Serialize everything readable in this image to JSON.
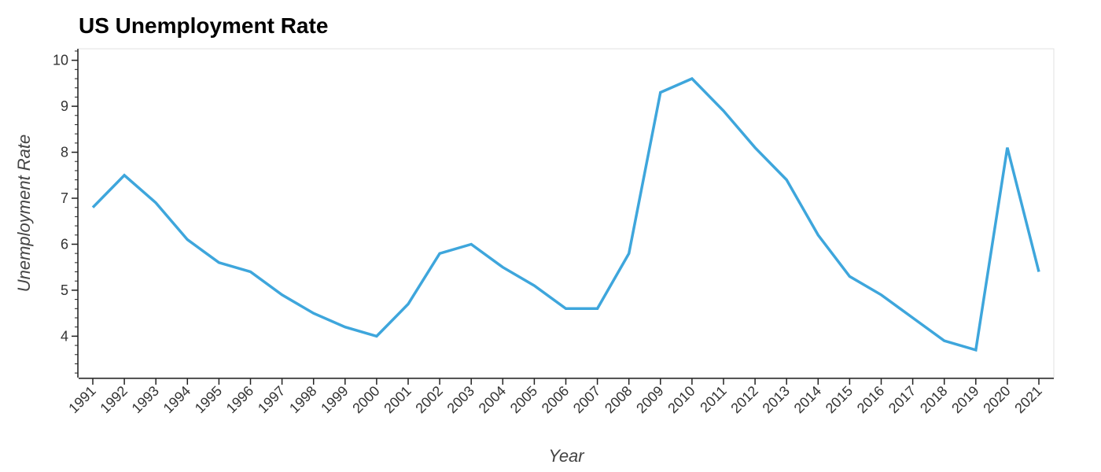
{
  "chart_data": {
    "type": "line",
    "title": "US Unemployment Rate",
    "xlabel": "Year",
    "ylabel": "Unemployment Rate",
    "x": [
      1991,
      1992,
      1993,
      1994,
      1995,
      1996,
      1997,
      1998,
      1999,
      2000,
      2001,
      2002,
      2003,
      2004,
      2005,
      2006,
      2007,
      2008,
      2009,
      2010,
      2011,
      2012,
      2013,
      2014,
      2015,
      2016,
      2017,
      2018,
      2019,
      2020,
      2021
    ],
    "x_tick_labels": [
      "1991",
      "1992",
      "1993",
      "1994",
      "1995",
      "1996",
      "1997",
      "1998",
      "1999",
      "2000",
      "2001",
      "2002",
      "2003",
      "2004",
      "2005",
      "2006",
      "2007",
      "2008",
      "2009",
      "2010",
      "2011",
      "2012",
      "2013",
      "2014",
      "2015",
      "2016",
      "2017",
      "2018",
      "2019",
      "2020",
      "2021"
    ],
    "series": [
      {
        "values": [
          6.8,
          7.5,
          6.9,
          6.1,
          5.6,
          5.4,
          4.9,
          4.5,
          4.2,
          4.0,
          4.7,
          5.8,
          6.0,
          5.5,
          5.1,
          4.6,
          4.6,
          5.8,
          9.3,
          9.6,
          8.9,
          8.1,
          7.4,
          6.2,
          5.3,
          4.9,
          4.4,
          3.9,
          3.7,
          8.1,
          5.4
        ]
      }
    ],
    "y_ticks": [
      4,
      5,
      6,
      7,
      8,
      9,
      10
    ],
    "y_tick_labels": [
      "4",
      "5",
      "6",
      "7",
      "8",
      "9",
      "10"
    ],
    "ylim": [
      3.1,
      10.25
    ],
    "grid": false,
    "line_color": "#3ea6dc"
  }
}
